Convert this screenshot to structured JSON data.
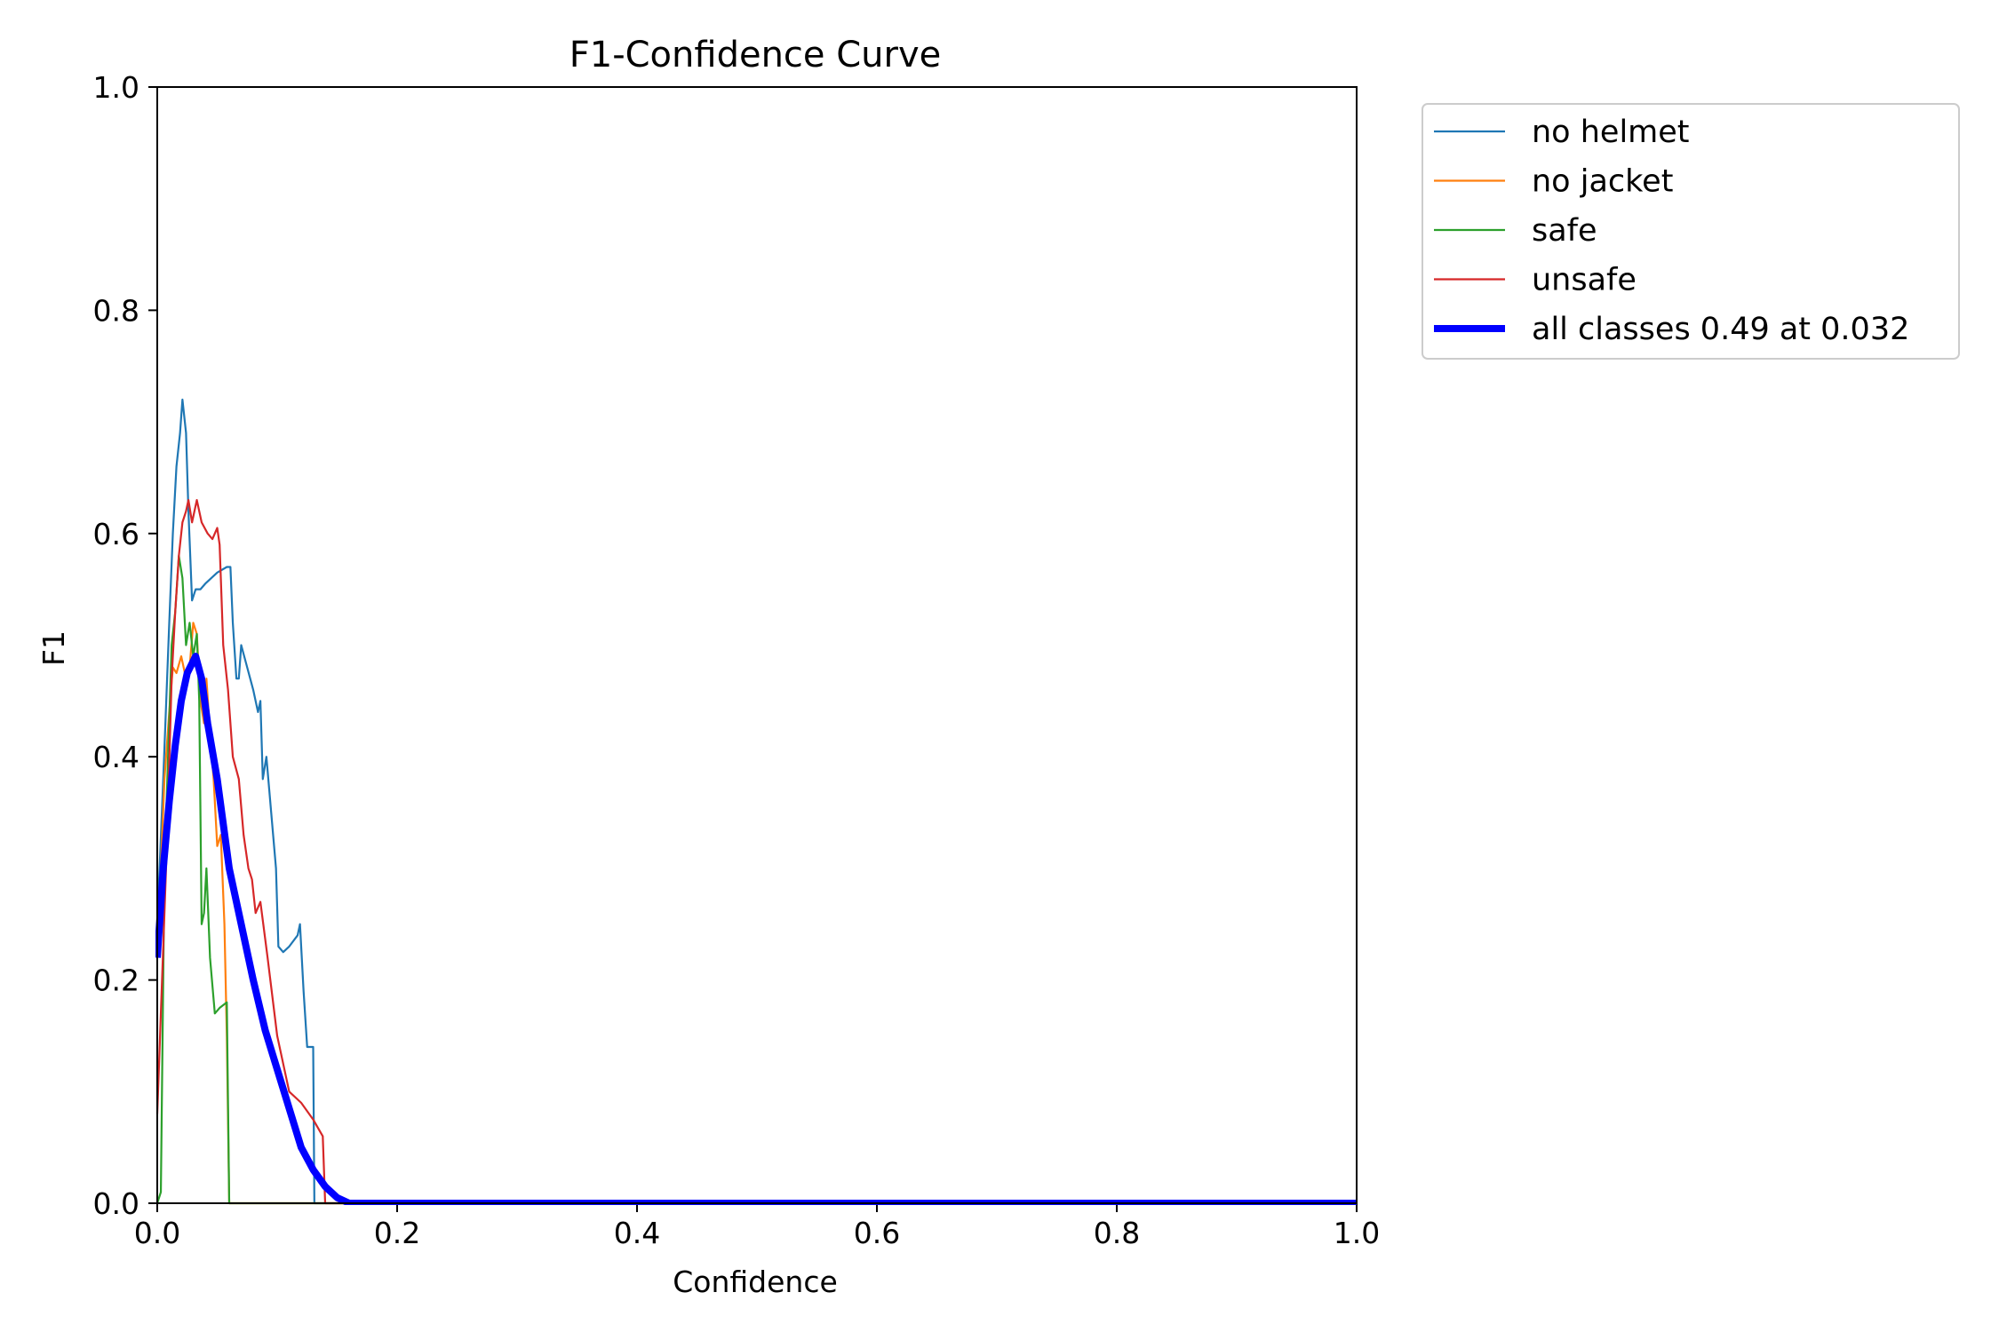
{
  "chart_data": {
    "type": "line",
    "title": "F1-Confidence Curve",
    "xlabel": "Confidence",
    "ylabel": "F1",
    "xlim": [
      0.0,
      1.0
    ],
    "ylim": [
      0.0,
      1.0
    ],
    "xticks": [
      "0.0",
      "0.2",
      "0.4",
      "0.6",
      "0.8",
      "1.0"
    ],
    "yticks": [
      "0.0",
      "0.2",
      "0.4",
      "0.6",
      "0.8",
      "1.0"
    ],
    "grid": false,
    "legend_position": "outside-top-right",
    "series": [
      {
        "name": "no helmet",
        "color": "#1f77b4",
        "width": "thin",
        "points": [
          [
            0.0,
            0.25
          ],
          [
            0.005,
            0.38
          ],
          [
            0.01,
            0.52
          ],
          [
            0.013,
            0.6
          ],
          [
            0.016,
            0.66
          ],
          [
            0.019,
            0.69
          ],
          [
            0.021,
            0.72
          ],
          [
            0.024,
            0.69
          ],
          [
            0.026,
            0.62
          ],
          [
            0.029,
            0.54
          ],
          [
            0.032,
            0.55
          ],
          [
            0.036,
            0.55
          ],
          [
            0.04,
            0.555
          ],
          [
            0.05,
            0.565
          ],
          [
            0.058,
            0.57
          ],
          [
            0.061,
            0.57
          ],
          [
            0.063,
            0.52
          ],
          [
            0.066,
            0.47
          ],
          [
            0.068,
            0.47
          ],
          [
            0.07,
            0.5
          ],
          [
            0.075,
            0.48
          ],
          [
            0.08,
            0.46
          ],
          [
            0.084,
            0.44
          ],
          [
            0.086,
            0.45
          ],
          [
            0.088,
            0.38
          ],
          [
            0.091,
            0.4
          ],
          [
            0.095,
            0.35
          ],
          [
            0.099,
            0.3
          ],
          [
            0.101,
            0.23
          ],
          [
            0.105,
            0.225
          ],
          [
            0.11,
            0.23
          ],
          [
            0.117,
            0.24
          ],
          [
            0.119,
            0.25
          ],
          [
            0.122,
            0.19
          ],
          [
            0.125,
            0.14
          ],
          [
            0.128,
            0.14
          ],
          [
            0.13,
            0.14
          ],
          [
            0.131,
            0.0
          ],
          [
            1.0,
            0.0
          ]
        ]
      },
      {
        "name": "no jacket",
        "color": "#ff7f0e",
        "width": "thin",
        "points": [
          [
            0.0,
            0.22
          ],
          [
            0.003,
            0.3
          ],
          [
            0.006,
            0.38
          ],
          [
            0.01,
            0.44
          ],
          [
            0.013,
            0.48
          ],
          [
            0.016,
            0.475
          ],
          [
            0.02,
            0.49
          ],
          [
            0.024,
            0.47
          ],
          [
            0.027,
            0.48
          ],
          [
            0.03,
            0.52
          ],
          [
            0.033,
            0.51
          ],
          [
            0.036,
            0.45
          ],
          [
            0.039,
            0.43
          ],
          [
            0.041,
            0.47
          ],
          [
            0.044,
            0.42
          ],
          [
            0.047,
            0.38
          ],
          [
            0.05,
            0.32
          ],
          [
            0.053,
            0.33
          ],
          [
            0.056,
            0.25
          ],
          [
            0.058,
            0.15
          ],
          [
            0.06,
            0.0
          ],
          [
            1.0,
            0.0
          ]
        ]
      },
      {
        "name": "safe",
        "color": "#2ca02c",
        "width": "thin",
        "points": [
          [
            0.0,
            0.0
          ],
          [
            0.003,
            0.01
          ],
          [
            0.006,
            0.3
          ],
          [
            0.009,
            0.4
          ],
          [
            0.012,
            0.5
          ],
          [
            0.015,
            0.53
          ],
          [
            0.018,
            0.58
          ],
          [
            0.021,
            0.56
          ],
          [
            0.024,
            0.5
          ],
          [
            0.027,
            0.52
          ],
          [
            0.03,
            0.49
          ],
          [
            0.033,
            0.51
          ],
          [
            0.035,
            0.45
          ],
          [
            0.037,
            0.25
          ],
          [
            0.039,
            0.26
          ],
          [
            0.041,
            0.3
          ],
          [
            0.044,
            0.22
          ],
          [
            0.048,
            0.17
          ],
          [
            0.052,
            0.175
          ],
          [
            0.058,
            0.18
          ],
          [
            0.06,
            0.0
          ],
          [
            1.0,
            0.0
          ]
        ]
      },
      {
        "name": "unsafe",
        "color": "#d62728",
        "width": "thin",
        "points": [
          [
            0.0,
            0.08
          ],
          [
            0.004,
            0.2
          ],
          [
            0.008,
            0.32
          ],
          [
            0.012,
            0.47
          ],
          [
            0.015,
            0.53
          ],
          [
            0.018,
            0.58
          ],
          [
            0.021,
            0.61
          ],
          [
            0.024,
            0.62
          ],
          [
            0.026,
            0.63
          ],
          [
            0.029,
            0.61
          ],
          [
            0.033,
            0.63
          ],
          [
            0.037,
            0.61
          ],
          [
            0.042,
            0.6
          ],
          [
            0.046,
            0.595
          ],
          [
            0.05,
            0.605
          ],
          [
            0.052,
            0.59
          ],
          [
            0.055,
            0.5
          ],
          [
            0.059,
            0.46
          ],
          [
            0.063,
            0.4
          ],
          [
            0.068,
            0.38
          ],
          [
            0.072,
            0.33
          ],
          [
            0.076,
            0.3
          ],
          [
            0.079,
            0.29
          ],
          [
            0.082,
            0.26
          ],
          [
            0.086,
            0.27
          ],
          [
            0.092,
            0.22
          ],
          [
            0.1,
            0.15
          ],
          [
            0.11,
            0.1
          ],
          [
            0.12,
            0.09
          ],
          [
            0.13,
            0.075
          ],
          [
            0.138,
            0.06
          ],
          [
            0.14,
            0.0
          ],
          [
            1.0,
            0.0
          ]
        ]
      },
      {
        "name": "all classes 0.49 at 0.032",
        "color": "#0000ff",
        "width": "thick",
        "points": [
          [
            0.0,
            0.22
          ],
          [
            0.005,
            0.3
          ],
          [
            0.01,
            0.36
          ],
          [
            0.015,
            0.41
          ],
          [
            0.02,
            0.45
          ],
          [
            0.025,
            0.475
          ],
          [
            0.032,
            0.49
          ],
          [
            0.037,
            0.47
          ],
          [
            0.042,
            0.43
          ],
          [
            0.05,
            0.38
          ],
          [
            0.06,
            0.3
          ],
          [
            0.07,
            0.25
          ],
          [
            0.08,
            0.2
          ],
          [
            0.09,
            0.155
          ],
          [
            0.1,
            0.12
          ],
          [
            0.11,
            0.085
          ],
          [
            0.12,
            0.05
          ],
          [
            0.13,
            0.03
          ],
          [
            0.14,
            0.015
          ],
          [
            0.15,
            0.005
          ],
          [
            0.16,
            0.0
          ],
          [
            1.0,
            0.0
          ]
        ]
      }
    ]
  }
}
